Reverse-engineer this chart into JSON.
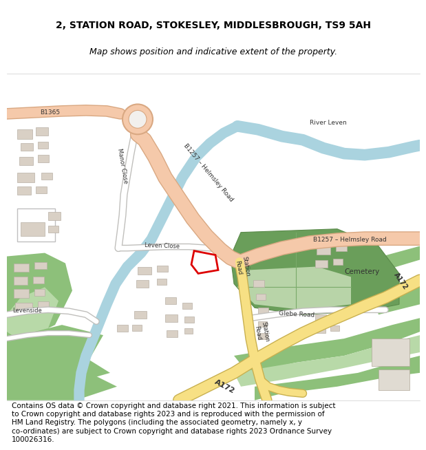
{
  "title_line1": "2, STATION ROAD, STOKESLEY, MIDDLESBROUGH, TS9 5AH",
  "title_line2": "Map shows position and indicative extent of the property.",
  "footer_text": "Contains OS data © Crown copyright and database right 2021. This information is subject to Crown copyright and database rights 2023 and is reproduced with the permission of HM Land Registry. The polygons (including the associated geometry, namely x, y co-ordinates) are subject to Crown copyright and database rights 2023 Ordnance Survey 100026316.",
  "title_fontsize": 10,
  "subtitle_fontsize": 9,
  "footer_fontsize": 7.5,
  "map_bg": "#f2f0ed",
  "road_major_color": "#f5c9aa",
  "road_border_color": "#d9a882",
  "road_A_color": "#f7e084",
  "road_A_border": "#c8b050",
  "water_color": "#aad3df",
  "green_color": "#8dc07a",
  "green_light": "#b8d9a8",
  "cemetery_color": "#6a9e5a",
  "cemetery_light": "#b8d4a8",
  "building_color": "#d9d0c5",
  "building_edge": "#b8b0a5",
  "plot_color": "#dd0000",
  "text_color": "#333333",
  "header_bg": "#ffffff",
  "footer_bg": "#ffffff",
  "road_white": "#ffffff",
  "road_white_border": "#c0bfbc"
}
